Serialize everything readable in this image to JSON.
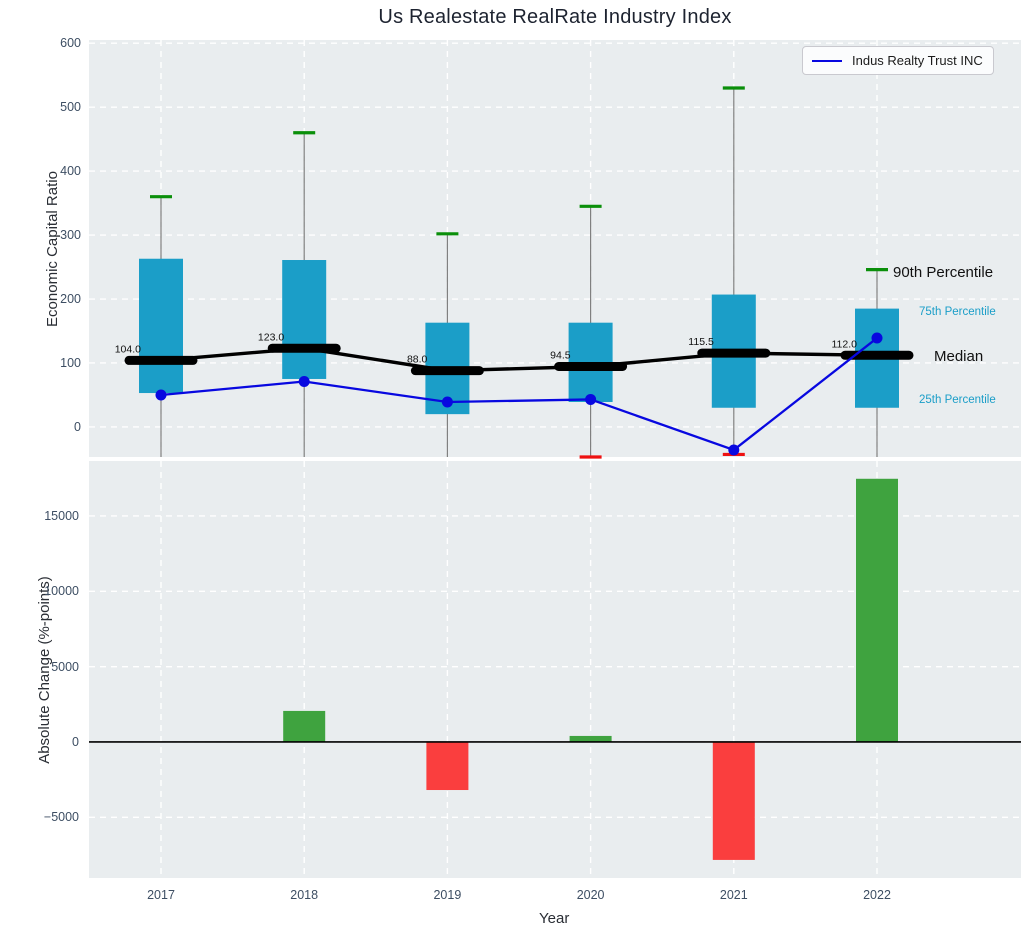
{
  "title": "Us Realestate RealRate Industry Index",
  "legend": {
    "label": "Indus Realty Trust INC",
    "line_color": "#0808e0"
  },
  "annotations": {
    "p90": "90th Percentile",
    "p75": "75th Percentile",
    "median": "Median",
    "p25": "25th Percentile"
  },
  "axis_labels": {
    "top_y": "Economic Capital Ratio",
    "bottom_y": "Absolute Change (%-points)",
    "x": "Year"
  },
  "colors": {
    "plot_background": "#e9edef",
    "grid": "#ffffff",
    "box": "#1b9ec8",
    "median": "#000000",
    "whisker": "#808080",
    "p90_cap": "#0a8f0a",
    "p10_cap": "#ee1111",
    "indus_line": "#0808e0",
    "bar_positive": "#3fa33f",
    "bar_negative": "#fa3e3e",
    "tick_text": "#3d4e63"
  },
  "chart_data": [
    {
      "type": "box",
      "title": "Us Realestate RealRate Industry Index",
      "ylabel": "Economic Capital Ratio",
      "ylim": [
        -47,
        605
      ],
      "yticks": [
        0,
        100,
        200,
        300,
        400,
        500,
        600
      ],
      "grid": true,
      "legend_position": "upper right",
      "categories": [
        "2017",
        "2018",
        "2019",
        "2020",
        "2021",
        "2022"
      ],
      "percentile_90": [
        360,
        460,
        302,
        345,
        530,
        246
      ],
      "percentile_75": [
        263,
        261,
        163,
        163,
        207,
        185
      ],
      "median": [
        104.0,
        123.0,
        88.0,
        94.5,
        115.5,
        112.0
      ],
      "median_labels": [
        "104.0",
        "123.0",
        "88.0",
        "94.5",
        "115.5",
        "112.0"
      ],
      "percentile_25": [
        53,
        75,
        20,
        39,
        30,
        30
      ],
      "percentile_10": [
        null,
        null,
        null,
        -47,
        -43,
        null
      ],
      "series": [
        {
          "name": "Indus Realty Trust INC",
          "values": [
            50,
            71,
            39,
            43,
            -36,
            139
          ]
        }
      ]
    },
    {
      "type": "bar",
      "ylabel": "Absolute Change (%-points)",
      "xlabel": "Year",
      "ylim": [
        -9030,
        18650
      ],
      "yticks": [
        -5000,
        0,
        5000,
        10000,
        15000
      ],
      "ytick_labels": [
        "−5000",
        "0",
        "5000",
        "10000",
        "15000"
      ],
      "grid": true,
      "categories": [
        "2017",
        "2018",
        "2019",
        "2020",
        "2021",
        "2022"
      ],
      "values": [
        null,
        2060,
        -3190,
        400,
        -7830,
        17470
      ]
    }
  ]
}
